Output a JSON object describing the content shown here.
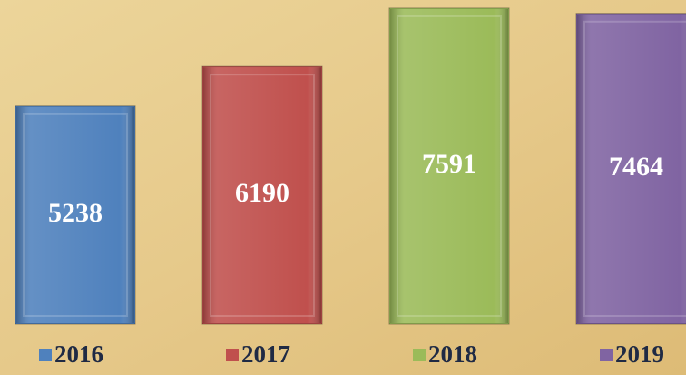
{
  "chart_data": {
    "type": "bar",
    "categories": [
      "2016",
      "2017",
      "2018",
      "2019"
    ],
    "values": [
      5238,
      6190,
      7591,
      7464
    ],
    "colors": [
      "#4f81bd",
      "#c0504d",
      "#9bbb59",
      "#8064a2"
    ]
  }
}
